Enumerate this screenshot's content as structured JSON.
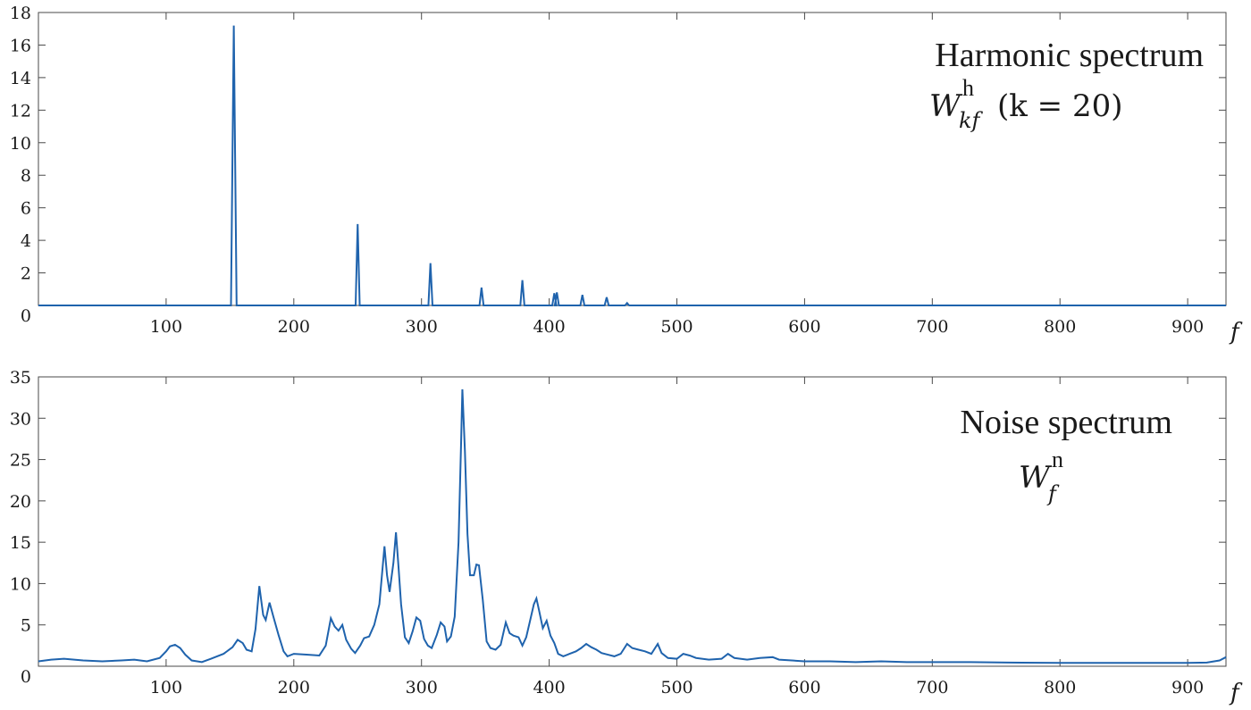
{
  "chart_data": [
    {
      "type": "line",
      "ylim": [
        0,
        18
      ],
      "xlim": [
        0,
        930
      ],
      "yticks": [
        0,
        2,
        4,
        6,
        8,
        10,
        12,
        14,
        16,
        18
      ],
      "ytick_labels": [
        "0",
        "2",
        "4",
        "6",
        "8",
        "10",
        "12",
        "14",
        "16",
        "18"
      ],
      "xticks": [
        100,
        200,
        300,
        400,
        500,
        600,
        700,
        800,
        900
      ],
      "xtick_labels": [
        "100",
        "200",
        "300",
        "400",
        "500",
        "600",
        "700",
        "800",
        "900"
      ],
      "xlabel": "f",
      "color": "#1f63ad",
      "annotation": {
        "line1": "Harmonic spectrum",
        "symbol": "W",
        "superscript": "h",
        "subscript": "kf",
        "condition": "(k = 20)"
      },
      "peaks": [
        {
          "x": 153,
          "y": 17.2
        },
        {
          "x": 250,
          "y": 5.0
        },
        {
          "x": 307,
          "y": 2.6
        },
        {
          "x": 347,
          "y": 1.1
        },
        {
          "x": 379,
          "y": 1.55
        },
        {
          "x": 404,
          "y": 0.75
        },
        {
          "x": 406,
          "y": 0.8
        },
        {
          "x": 426,
          "y": 0.65
        },
        {
          "x": 445,
          "y": 0.5
        },
        {
          "x": 461,
          "y": 0.15
        }
      ]
    },
    {
      "type": "line",
      "ylim": [
        0,
        35
      ],
      "xlim": [
        0,
        930
      ],
      "yticks": [
        0,
        5,
        10,
        15,
        20,
        25,
        30,
        35
      ],
      "ytick_labels": [
        "0",
        "5",
        "10",
        "15",
        "20",
        "25",
        "30",
        "35"
      ],
      "xticks": [
        100,
        200,
        300,
        400,
        500,
        600,
        700,
        800,
        900
      ],
      "xtick_labels": [
        "100",
        "200",
        "300",
        "400",
        "500",
        "600",
        "700",
        "800",
        "900"
      ],
      "xlabel": "f",
      "color": "#1f63ad",
      "annotation": {
        "line1": "Noise spectrum",
        "symbol": "W",
        "superscript": "n",
        "subscript": "f"
      },
      "points": [
        [
          0,
          0.6
        ],
        [
          10,
          0.8
        ],
        [
          20,
          0.9
        ],
        [
          35,
          0.7
        ],
        [
          50,
          0.6
        ],
        [
          65,
          0.7
        ],
        [
          75,
          0.8
        ],
        [
          85,
          0.6
        ],
        [
          95,
          1.0
        ],
        [
          100,
          1.8
        ],
        [
          103,
          2.4
        ],
        [
          107,
          2.6
        ],
        [
          111,
          2.2
        ],
        [
          115,
          1.4
        ],
        [
          120,
          0.7
        ],
        [
          128,
          0.5
        ],
        [
          135,
          0.9
        ],
        [
          145,
          1.5
        ],
        [
          152,
          2.3
        ],
        [
          156,
          3.2
        ],
        [
          160,
          2.8
        ],
        [
          163,
          2.0
        ],
        [
          167,
          1.8
        ],
        [
          170,
          4.5
        ],
        [
          173,
          9.7
        ],
        [
          176,
          6.2
        ],
        [
          178,
          5.6
        ],
        [
          181,
          7.7
        ],
        [
          184,
          6.0
        ],
        [
          188,
          3.8
        ],
        [
          192,
          1.8
        ],
        [
          195,
          1.2
        ],
        [
          200,
          1.5
        ],
        [
          210,
          1.4
        ],
        [
          220,
          1.3
        ],
        [
          225,
          2.5
        ],
        [
          229,
          5.8
        ],
        [
          232,
          4.8
        ],
        [
          235,
          4.3
        ],
        [
          238,
          5.0
        ],
        [
          241,
          3.2
        ],
        [
          245,
          2.1
        ],
        [
          248,
          1.6
        ],
        [
          252,
          2.5
        ],
        [
          255,
          3.4
        ],
        [
          259,
          3.6
        ],
        [
          263,
          5.0
        ],
        [
          267,
          7.5
        ],
        [
          269,
          11.0
        ],
        [
          271,
          14.5
        ],
        [
          273,
          11.0
        ],
        [
          275,
          9.0
        ],
        [
          278,
          12.5
        ],
        [
          280,
          16.2
        ],
        [
          282,
          12.0
        ],
        [
          284,
          7.5
        ],
        [
          287,
          3.5
        ],
        [
          290,
          2.8
        ],
        [
          293,
          4.2
        ],
        [
          296,
          5.9
        ],
        [
          299,
          5.5
        ],
        [
          302,
          3.3
        ],
        [
          305,
          2.5
        ],
        [
          308,
          2.2
        ],
        [
          312,
          3.8
        ],
        [
          315,
          5.3
        ],
        [
          318,
          4.8
        ],
        [
          320,
          3.0
        ],
        [
          323,
          3.6
        ],
        [
          326,
          6.0
        ],
        [
          329,
          15.0
        ],
        [
          331,
          27.0
        ],
        [
          332,
          33.5
        ],
        [
          334,
          26.0
        ],
        [
          336,
          16.0
        ],
        [
          338,
          11.0
        ],
        [
          341,
          11.0
        ],
        [
          343,
          12.3
        ],
        [
          345,
          12.2
        ],
        [
          348,
          8.0
        ],
        [
          351,
          3.0
        ],
        [
          354,
          2.2
        ],
        [
          358,
          2.0
        ],
        [
          362,
          2.6
        ],
        [
          366,
          5.3
        ],
        [
          369,
          4.0
        ],
        [
          372,
          3.7
        ],
        [
          376,
          3.5
        ],
        [
          379,
          2.5
        ],
        [
          382,
          3.5
        ],
        [
          385,
          5.5
        ],
        [
          388,
          7.5
        ],
        [
          390,
          8.2
        ],
        [
          392,
          6.8
        ],
        [
          395,
          4.6
        ],
        [
          398,
          5.5
        ],
        [
          401,
          3.7
        ],
        [
          404,
          2.8
        ],
        [
          407,
          1.5
        ],
        [
          411,
          1.2
        ],
        [
          416,
          1.5
        ],
        [
          421,
          1.8
        ],
        [
          425,
          2.2
        ],
        [
          429,
          2.7
        ],
        [
          433,
          2.3
        ],
        [
          437,
          2.0
        ],
        [
          441,
          1.6
        ],
        [
          446,
          1.4
        ],
        [
          451,
          1.2
        ],
        [
          456,
          1.5
        ],
        [
          461,
          2.7
        ],
        [
          465,
          2.2
        ],
        [
          470,
          2.0
        ],
        [
          475,
          1.8
        ],
        [
          480,
          1.5
        ],
        [
          485,
          2.7
        ],
        [
          488,
          1.6
        ],
        [
          493,
          1.0
        ],
        [
          500,
          0.9
        ],
        [
          505,
          1.5
        ],
        [
          510,
          1.3
        ],
        [
          515,
          1.0
        ],
        [
          525,
          0.8
        ],
        [
          535,
          0.9
        ],
        [
          540,
          1.5
        ],
        [
          545,
          1.0
        ],
        [
          555,
          0.8
        ],
        [
          565,
          1.0
        ],
        [
          575,
          1.1
        ],
        [
          580,
          0.8
        ],
        [
          590,
          0.7
        ],
        [
          600,
          0.6
        ],
        [
          620,
          0.6
        ],
        [
          640,
          0.5
        ],
        [
          660,
          0.6
        ],
        [
          680,
          0.5
        ],
        [
          700,
          0.5
        ],
        [
          730,
          0.5
        ],
        [
          760,
          0.45
        ],
        [
          800,
          0.4
        ],
        [
          850,
          0.4
        ],
        [
          900,
          0.4
        ],
        [
          915,
          0.45
        ],
        [
          925,
          0.7
        ],
        [
          930,
          1.1
        ]
      ]
    }
  ]
}
